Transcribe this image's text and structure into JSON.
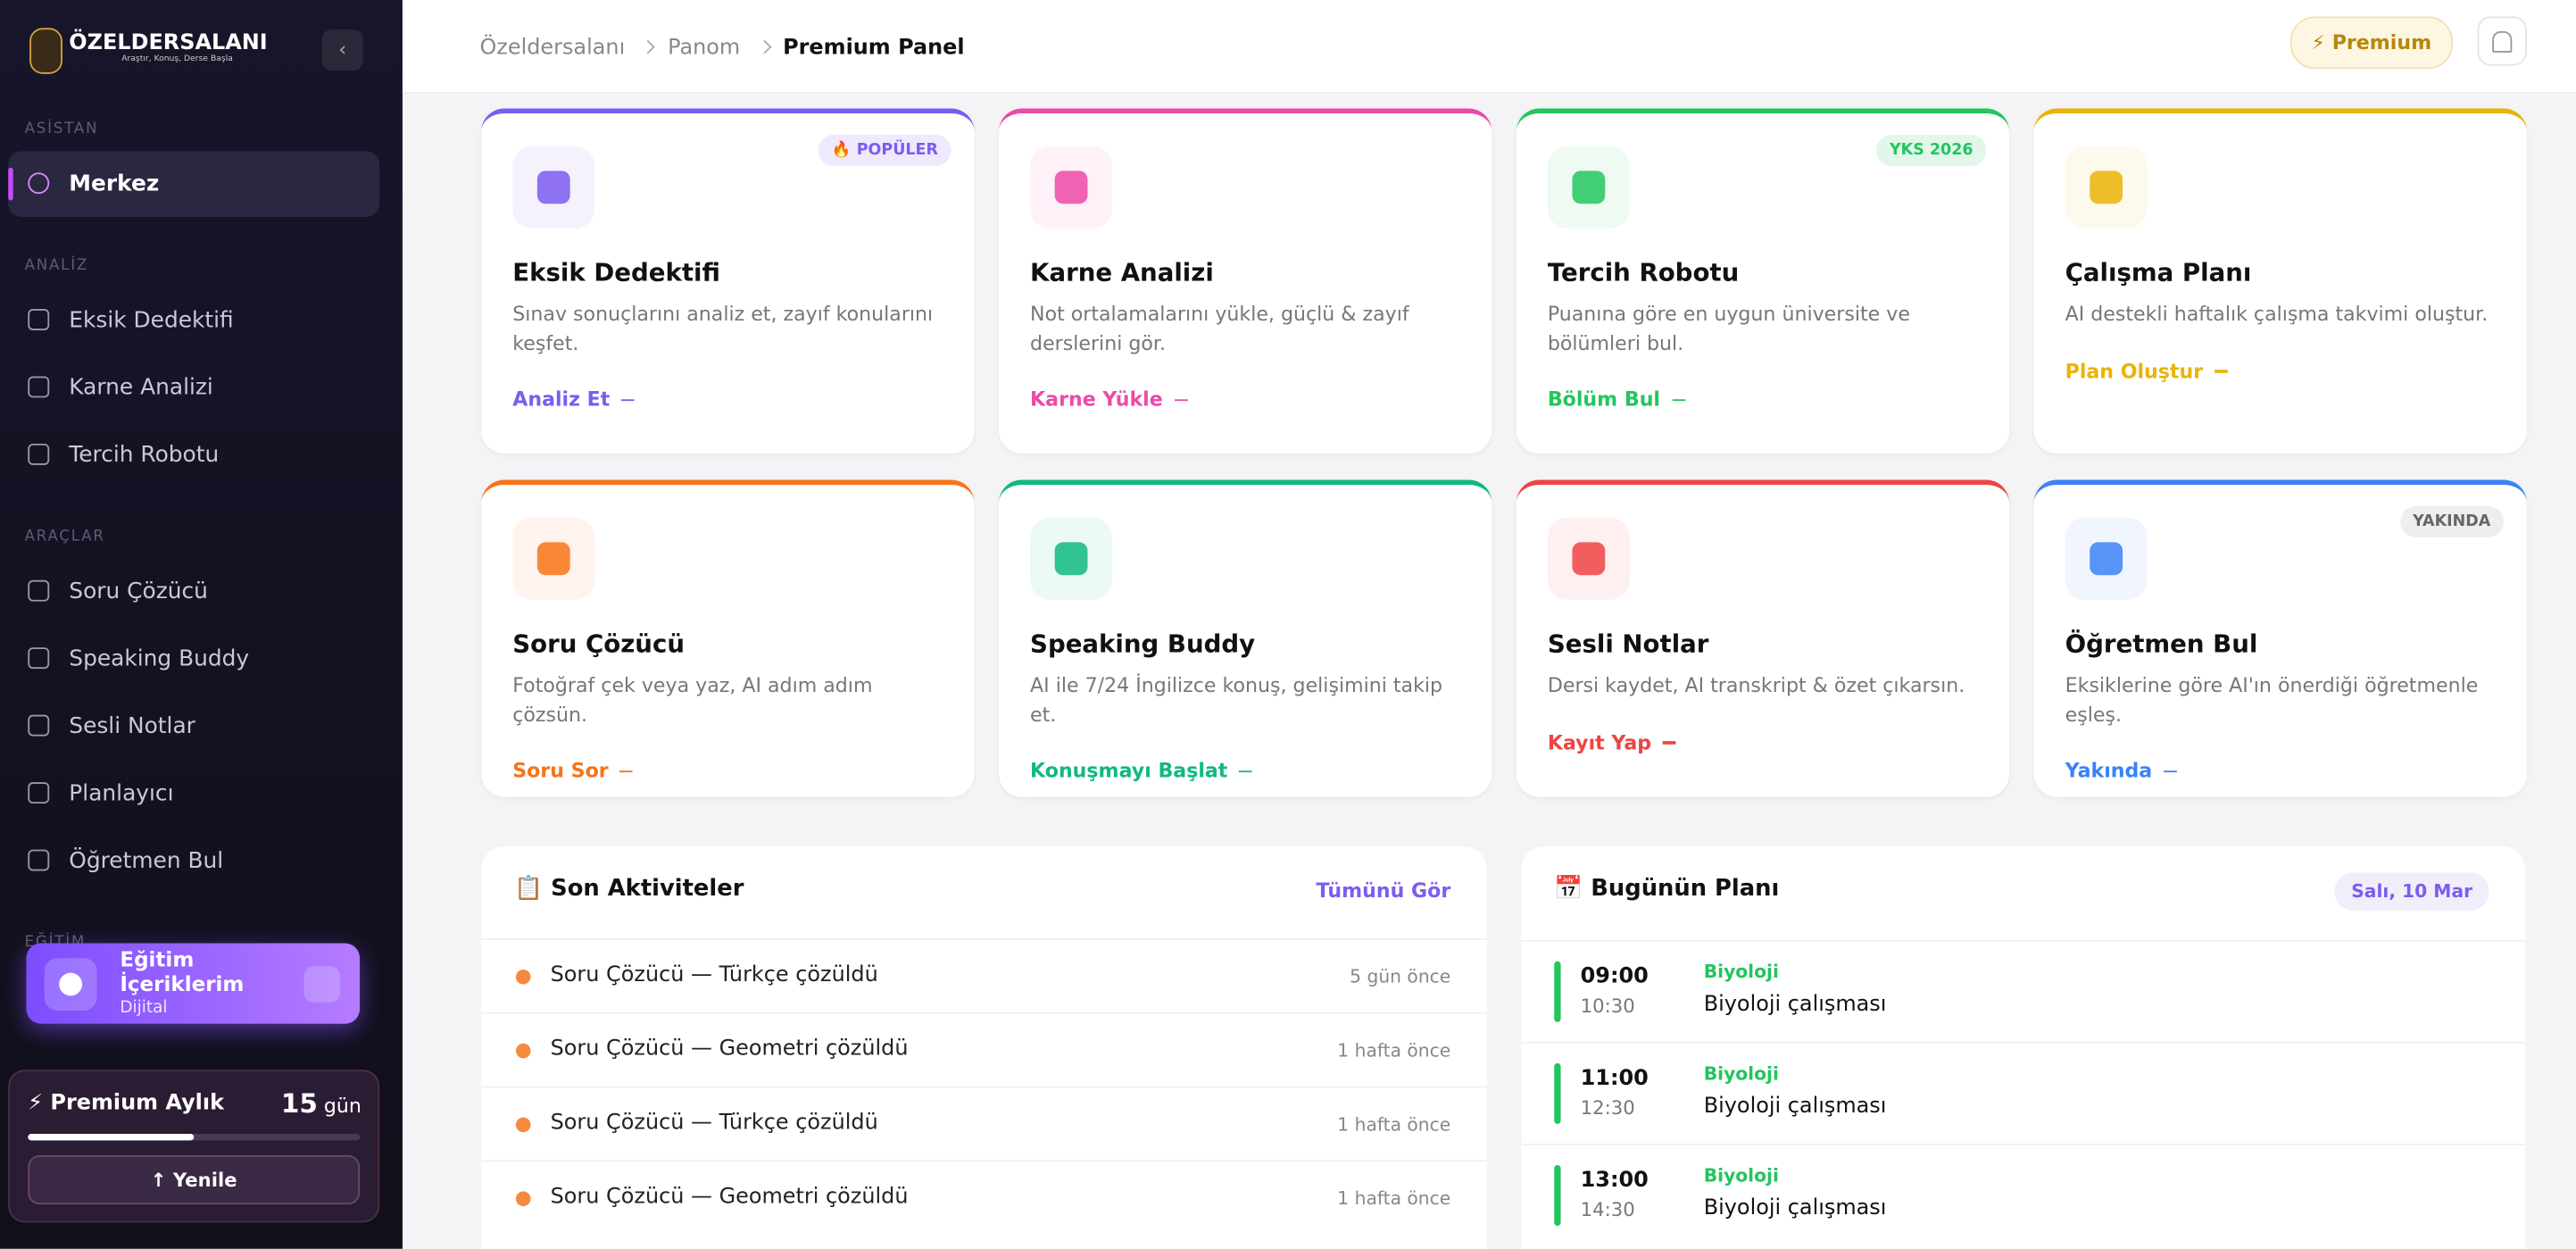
{
  "sidebar": {
    "brand": "ÖZELDERSALANI",
    "tagline": "Araştır, Konuş, Derse Başla",
    "sections": [
      {
        "title": "ASİSTAN",
        "items": [
          "Merkez"
        ]
      },
      {
        "title": "ANALİZ",
        "items": [
          "Eksik Dedektifi",
          "Karne Analizi",
          "Tercih Robotu"
        ]
      },
      {
        "title": "ARAÇLAR",
        "items": [
          "Soru Çözücü",
          "Speaking Buddy",
          "Sesli Notlar",
          "Planlayıcı",
          "Öğretmen Bul"
        ]
      },
      {
        "title": "EĞİTİM",
        "items": []
      }
    ],
    "edu": {
      "title": "Eğitim İçeriklerim",
      "subtitle": "Dijital"
    },
    "premium": {
      "title": "⚡ Premium Aylık",
      "days": "15",
      "unit": "gün",
      "button": "↑ Yenile"
    }
  },
  "header": {
    "breadcrumbs": [
      "Özeldersalanı",
      "Panom",
      "Premium Panel"
    ],
    "premium": "⚡ Premium"
  },
  "cards": [
    {
      "title": "Eksik Dedektifi",
      "desc": "Sınav sonuçlarını analiz et, zayıf konularını keşfet.",
      "action": "Analiz Et",
      "badge": "🔥 POPÜLER",
      "color": "#7c5cf0"
    },
    {
      "title": "Karne Analizi",
      "desc": "Not ortalamalarını yükle, güçlü & zayıf derslerini gör.",
      "action": "Karne Yükle",
      "color": "#ec4aa8"
    },
    {
      "title": "Tercih Robotu",
      "desc": "Puanına göre en uygun üniversite ve bölümleri bul.",
      "action": "Bölüm Bul",
      "badge": "YKS 2026",
      "color": "#22c55e"
    },
    {
      "title": "Çalışma Planı",
      "desc": "AI destekli haftalık çalışma takvimi oluştur.",
      "action": "Plan Oluştur",
      "color": "#eab308"
    },
    {
      "title": "Soru Çözücü",
      "desc": "Fotoğraf çek veya yaz, AI adım adım çözsün.",
      "action": "Soru Sor",
      "color": "#f97316"
    },
    {
      "title": "Speaking Buddy",
      "desc": "AI ile 7/24 İngilizce konuş, gelişimini takip et.",
      "action": "Konuşmayı Başlat",
      "color": "#10b981"
    },
    {
      "title": "Sesli Notlar",
      "desc": "Dersi kaydet, AI transkript & özet çıkarsın.",
      "action": "Kayıt Yap",
      "color": "#ef4444"
    },
    {
      "title": "Öğretmen Bul",
      "desc": "Eksiklerine göre AI'ın önerdiği öğretmenle eşleş.",
      "action": "Yakında",
      "badge": "YAKINDA",
      "color": "#3b82f6"
    }
  ],
  "activities": {
    "title": "📋 Son Aktiviteler",
    "link": "Tümünü Gör",
    "items": [
      {
        "text": "Soru Çözücü — Türkçe çözüldü",
        "time": "5 gün önce"
      },
      {
        "text": "Soru Çözücü — Geometri çözüldü",
        "time": "1 hafta önce"
      },
      {
        "text": "Soru Çözücü — Türkçe çözüldü",
        "time": "1 hafta önce"
      },
      {
        "text": "Soru Çözücü — Geometri çözüldü",
        "time": "1 hafta önce"
      }
    ]
  },
  "plan": {
    "title": "📅 Bugünün Planı",
    "date": "Salı, 10 Mar",
    "items": [
      {
        "start": "09:00",
        "end": "10:30",
        "subject": "Biyoloji",
        "task": "Biyoloji çalışması"
      },
      {
        "start": "11:00",
        "end": "12:30",
        "subject": "Biyoloji",
        "task": "Biyoloji çalışması"
      },
      {
        "start": "13:00",
        "end": "14:30",
        "subject": "Biyoloji",
        "task": "Biyoloji çalışması"
      }
    ]
  }
}
